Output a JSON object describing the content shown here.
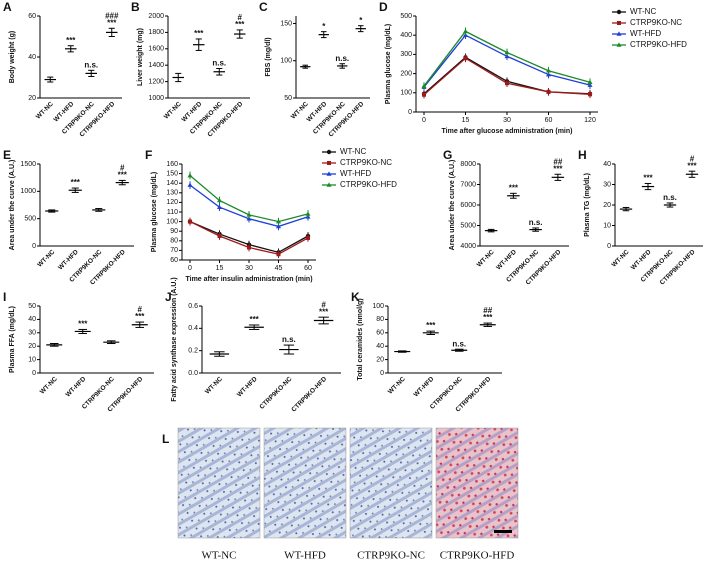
{
  "chart_data": [
    {
      "type": "dot",
      "label": "A",
      "ylabel": "Body weight (g)",
      "categories": [
        "WT-NC",
        "WT-HFD",
        "CTRP9KO-NC",
        "CTRP9KO-HFD"
      ],
      "values": [
        29,
        44,
        32,
        52
      ],
      "errors": [
        1.2,
        1.5,
        1.5,
        2
      ],
      "ylim": [
        20,
        60
      ],
      "yticks": [
        20,
        40,
        60
      ],
      "annotations": [
        null,
        [
          "***"
        ],
        [
          "n.s."
        ],
        [
          "###",
          "***"
        ]
      ]
    },
    {
      "type": "dot",
      "label": "B",
      "ylabel": "Liver weight (mg)",
      "categories": [
        "WT-NC",
        "WT-HFD",
        "CTRP9KO-NC",
        "CTRP9KO-HFD"
      ],
      "values": [
        1250,
        1650,
        1320,
        1780
      ],
      "errors": [
        50,
        70,
        40,
        50
      ],
      "ylim": [
        1000,
        2000
      ],
      "yticks": [
        1000,
        1200,
        1400,
        1600,
        1800,
        2000
      ],
      "annotations": [
        null,
        [
          "***"
        ],
        [
          "n.s."
        ],
        [
          "#",
          "***"
        ]
      ]
    },
    {
      "type": "dot",
      "label": "C",
      "ylabel": "FBS (mg/dl)",
      "categories": [
        "WT-NC",
        "WT-HFD",
        "CTRP9KO-NC",
        "CTRP9KO-HFD"
      ],
      "values": [
        92,
        135,
        93,
        143
      ],
      "errors": [
        2,
        4,
        3,
        4
      ],
      "ylim": [
        50,
        160
      ],
      "yticks": [
        50,
        100,
        150
      ],
      "annotations": [
        null,
        [
          "*"
        ],
        [
          "n.s."
        ],
        [
          "*"
        ]
      ]
    },
    {
      "type": "line",
      "label": "D",
      "ylabel": "Plasma glucose (mg/dL)",
      "xlabel": "Time after glucose administration (min)",
      "categories": [
        "0",
        "15",
        "30",
        "60",
        "120"
      ],
      "ylim": [
        0,
        500
      ],
      "yticks": [
        0,
        100,
        200,
        300,
        400,
        500
      ],
      "legend": "right",
      "series": [
        {
          "name": "WT-NC",
          "color": "#111111",
          "marker": "circle",
          "values": [
            95,
            285,
            160,
            105,
            95
          ]
        },
        {
          "name": "CTRP9KO-NC",
          "color": "#a01818",
          "marker": "square",
          "values": [
            90,
            280,
            150,
            105,
            92
          ]
        },
        {
          "name": "WT-HFD",
          "color": "#1f3fd6",
          "marker": "triangle",
          "values": [
            130,
            400,
            290,
            195,
            140
          ]
        },
        {
          "name": "CTRP9KO-HFD",
          "color": "#1a8a2a",
          "marker": "triangle",
          "values": [
            135,
            420,
            310,
            215,
            155
          ]
        }
      ]
    },
    {
      "type": "dot",
      "label": "E",
      "ylabel": "Area under the curve (A.U.)",
      "categories": [
        "WT-NC",
        "WT-HFD",
        "CTRP9KO-NC",
        "CTRP9KO-HFD"
      ],
      "values": [
        640,
        1020,
        660,
        1160
      ],
      "errors": [
        20,
        40,
        25,
        40
      ],
      "ylim": [
        0,
        1500
      ],
      "yticks": [
        0,
        500,
        1000,
        1500
      ],
      "annotations": [
        null,
        [
          "***"
        ],
        null,
        [
          "#",
          "***"
        ]
      ]
    },
    {
      "type": "line",
      "label": "F",
      "ylabel": "Plasma glucose (mg/dL)",
      "xlabel": "Time after insulin administration (min)",
      "categories": [
        "0",
        "15",
        "30",
        "45",
        "60"
      ],
      "ylim": [
        60,
        160
      ],
      "yticks": [
        60,
        70,
        80,
        90,
        100,
        110,
        120,
        130,
        140,
        150,
        160
      ],
      "legend": "right",
      "series": [
        {
          "name": "WT-NC",
          "color": "#111111",
          "marker": "circle",
          "values": [
            100,
            87,
            76,
            68,
            85
          ]
        },
        {
          "name": "CTRP9KO-NC",
          "color": "#a01818",
          "marker": "square",
          "values": [
            100,
            85,
            73,
            66,
            83
          ]
        },
        {
          "name": "WT-HFD",
          "color": "#1f3fd6",
          "marker": "triangle",
          "values": [
            138,
            115,
            103,
            95,
            105
          ]
        },
        {
          "name": "CTRP9KO-HFD",
          "color": "#1a8a2a",
          "marker": "triangle",
          "values": [
            148,
            122,
            107,
            100,
            108
          ]
        }
      ]
    },
    {
      "type": "dot",
      "label": "G",
      "ylabel": "Area under the curve (A.U.)",
      "categories": [
        "WT-NC",
        "WT-HFD",
        "CTRP9KO-NC",
        "CTRP9KO-HFD"
      ],
      "values": [
        4750,
        6450,
        4800,
        7350
      ],
      "errors": [
        60,
        120,
        80,
        150
      ],
      "ylim": [
        4000,
        8000
      ],
      "yticks": [
        4000,
        5000,
        6000,
        7000,
        8000
      ],
      "annotations": [
        null,
        [
          "***"
        ],
        [
          "n.s."
        ],
        [
          "##",
          "***"
        ]
      ]
    },
    {
      "type": "dot",
      "label": "H",
      "ylabel": "Plasma TG (mg/dL)",
      "categories": [
        "WT-NC",
        "WT-HFD",
        "CTRP9KO-NC",
        "CTRP9KO-HFD"
      ],
      "values": [
        18,
        29,
        20,
        35
      ],
      "errors": [
        0.8,
        1.5,
        1,
        1.5
      ],
      "ylim": [
        0,
        40
      ],
      "yticks": [
        0,
        10,
        20,
        30,
        40
      ],
      "annotations": [
        null,
        [
          "***"
        ],
        [
          "n.s."
        ],
        [
          "#",
          "***"
        ]
      ]
    },
    {
      "type": "dot",
      "label": "I",
      "ylabel": "Plasma FFA (mg/dL)",
      "categories": [
        "WT-NC",
        "WT-HFD",
        "CTRP9KO-NC",
        "CTRP9KO-HFD"
      ],
      "values": [
        21,
        31,
        23,
        36
      ],
      "errors": [
        1,
        1.5,
        1,
        2
      ],
      "ylim": [
        0,
        50
      ],
      "yticks": [
        0,
        10,
        20,
        30,
        40,
        50
      ],
      "annotations": [
        null,
        [
          "***"
        ],
        null,
        [
          "#",
          "***"
        ]
      ]
    },
    {
      "type": "dot",
      "label": "J",
      "ylabel": "Fatty acid synthase expression (A.U.)",
      "categories": [
        "WT-NC",
        "WT-HFD",
        "CTRP9KO-NC",
        "CTRP9KO-HFD"
      ],
      "values": [
        0.17,
        0.41,
        0.21,
        0.47
      ],
      "errors": [
        0.02,
        0.02,
        0.04,
        0.03
      ],
      "ylim": [
        0,
        0.6
      ],
      "yticks": [
        {
          "value": 0,
          "label": "0.0"
        },
        0.2,
        0.4,
        0.6
      ],
      "annotations": [
        null,
        [
          "***"
        ],
        [
          "n.s."
        ],
        [
          "#",
          "***"
        ]
      ]
    },
    {
      "type": "dot",
      "label": "K",
      "ylabel": "Total ceramides (nmol/g)",
      "categories": [
        "WT-NC",
        "WT-HFD",
        "CTRP9KO-NC",
        "CTRP9KO-HFD"
      ],
      "values": [
        32,
        60,
        34,
        72
      ],
      "errors": [
        1,
        2.5,
        1.5,
        2.5
      ],
      "ylim": [
        0,
        100
      ],
      "yticks": [
        0,
        20,
        40,
        60,
        80,
        100
      ],
      "annotations": [
        null,
        [
          "***"
        ],
        [
          "n.s."
        ],
        [
          "##",
          "***"
        ]
      ]
    }
  ],
  "histology": {
    "label": "L",
    "captions": [
      "WT-NC",
      "WT-HFD",
      "CTRP9KO-NC",
      "CTRP9KO-HFD"
    ]
  }
}
